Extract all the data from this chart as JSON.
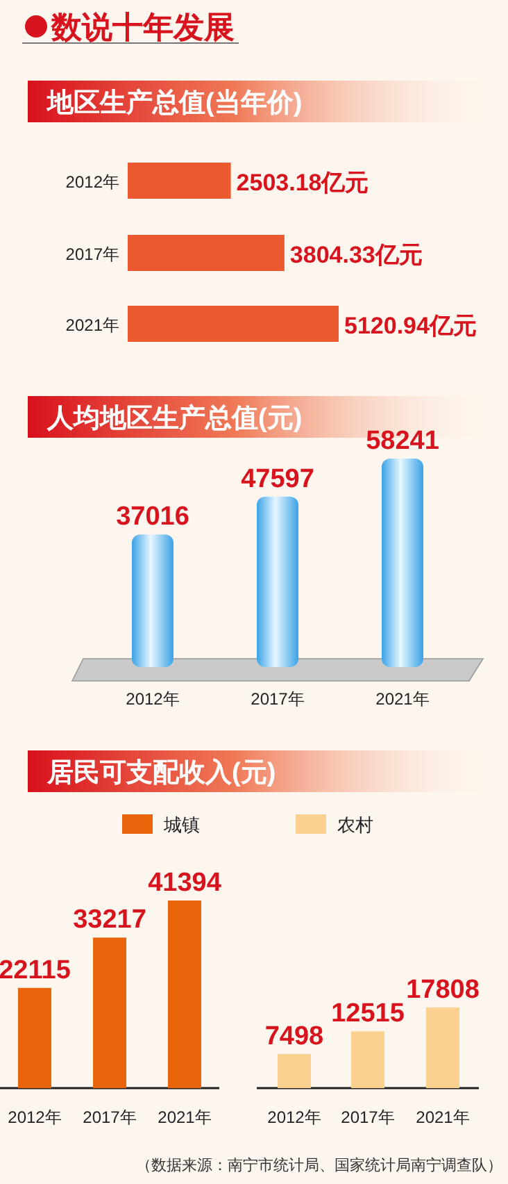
{
  "chart_data": [
    {
      "type": "other",
      "title": "数说十年发展"
    },
    {
      "type": "bar",
      "orientation": "horizontal",
      "title": "地区生产总值(当年价)",
      "categories": [
        "2012年",
        "2017年",
        "2021年"
      ],
      "values": [
        2503.18,
        3804.33,
        5120.94
      ],
      "color": "#ea5a2e",
      "value_labels": [
        "2503.18亿元",
        "3804.33亿元",
        "5120.94亿元"
      ]
    },
    {
      "type": "bar",
      "title": "人均地区生产总值(元)",
      "categories": [
        "2012年",
        "2017年",
        "2021年"
      ],
      "values": [
        37016,
        47597,
        58241
      ],
      "color": "#3ba3e6",
      "data_labels": true
    },
    {
      "type": "bar",
      "title": "居民可支配收入(元)",
      "categories": [
        "2012年",
        "2017年",
        "2021年"
      ],
      "legend": "top",
      "data_labels": true,
      "series": [
        {
          "name": "城镇",
          "color": "#e8650c",
          "values": [
            22115,
            33217,
            41394
          ]
        }
      ]
    },
    {
      "type": "bar",
      "categories": [
        "2012年",
        "2017年",
        "2021年"
      ],
      "legend": "top",
      "data_labels": true,
      "series": [
        {
          "name": "农村",
          "color": "#fcd08e",
          "values": [
            7498,
            12515,
            17808
          ]
        }
      ],
      "annotations": [
        "（数据来源：南宁市统计局、国家统计局南宁调查队）"
      ]
    }
  ]
}
